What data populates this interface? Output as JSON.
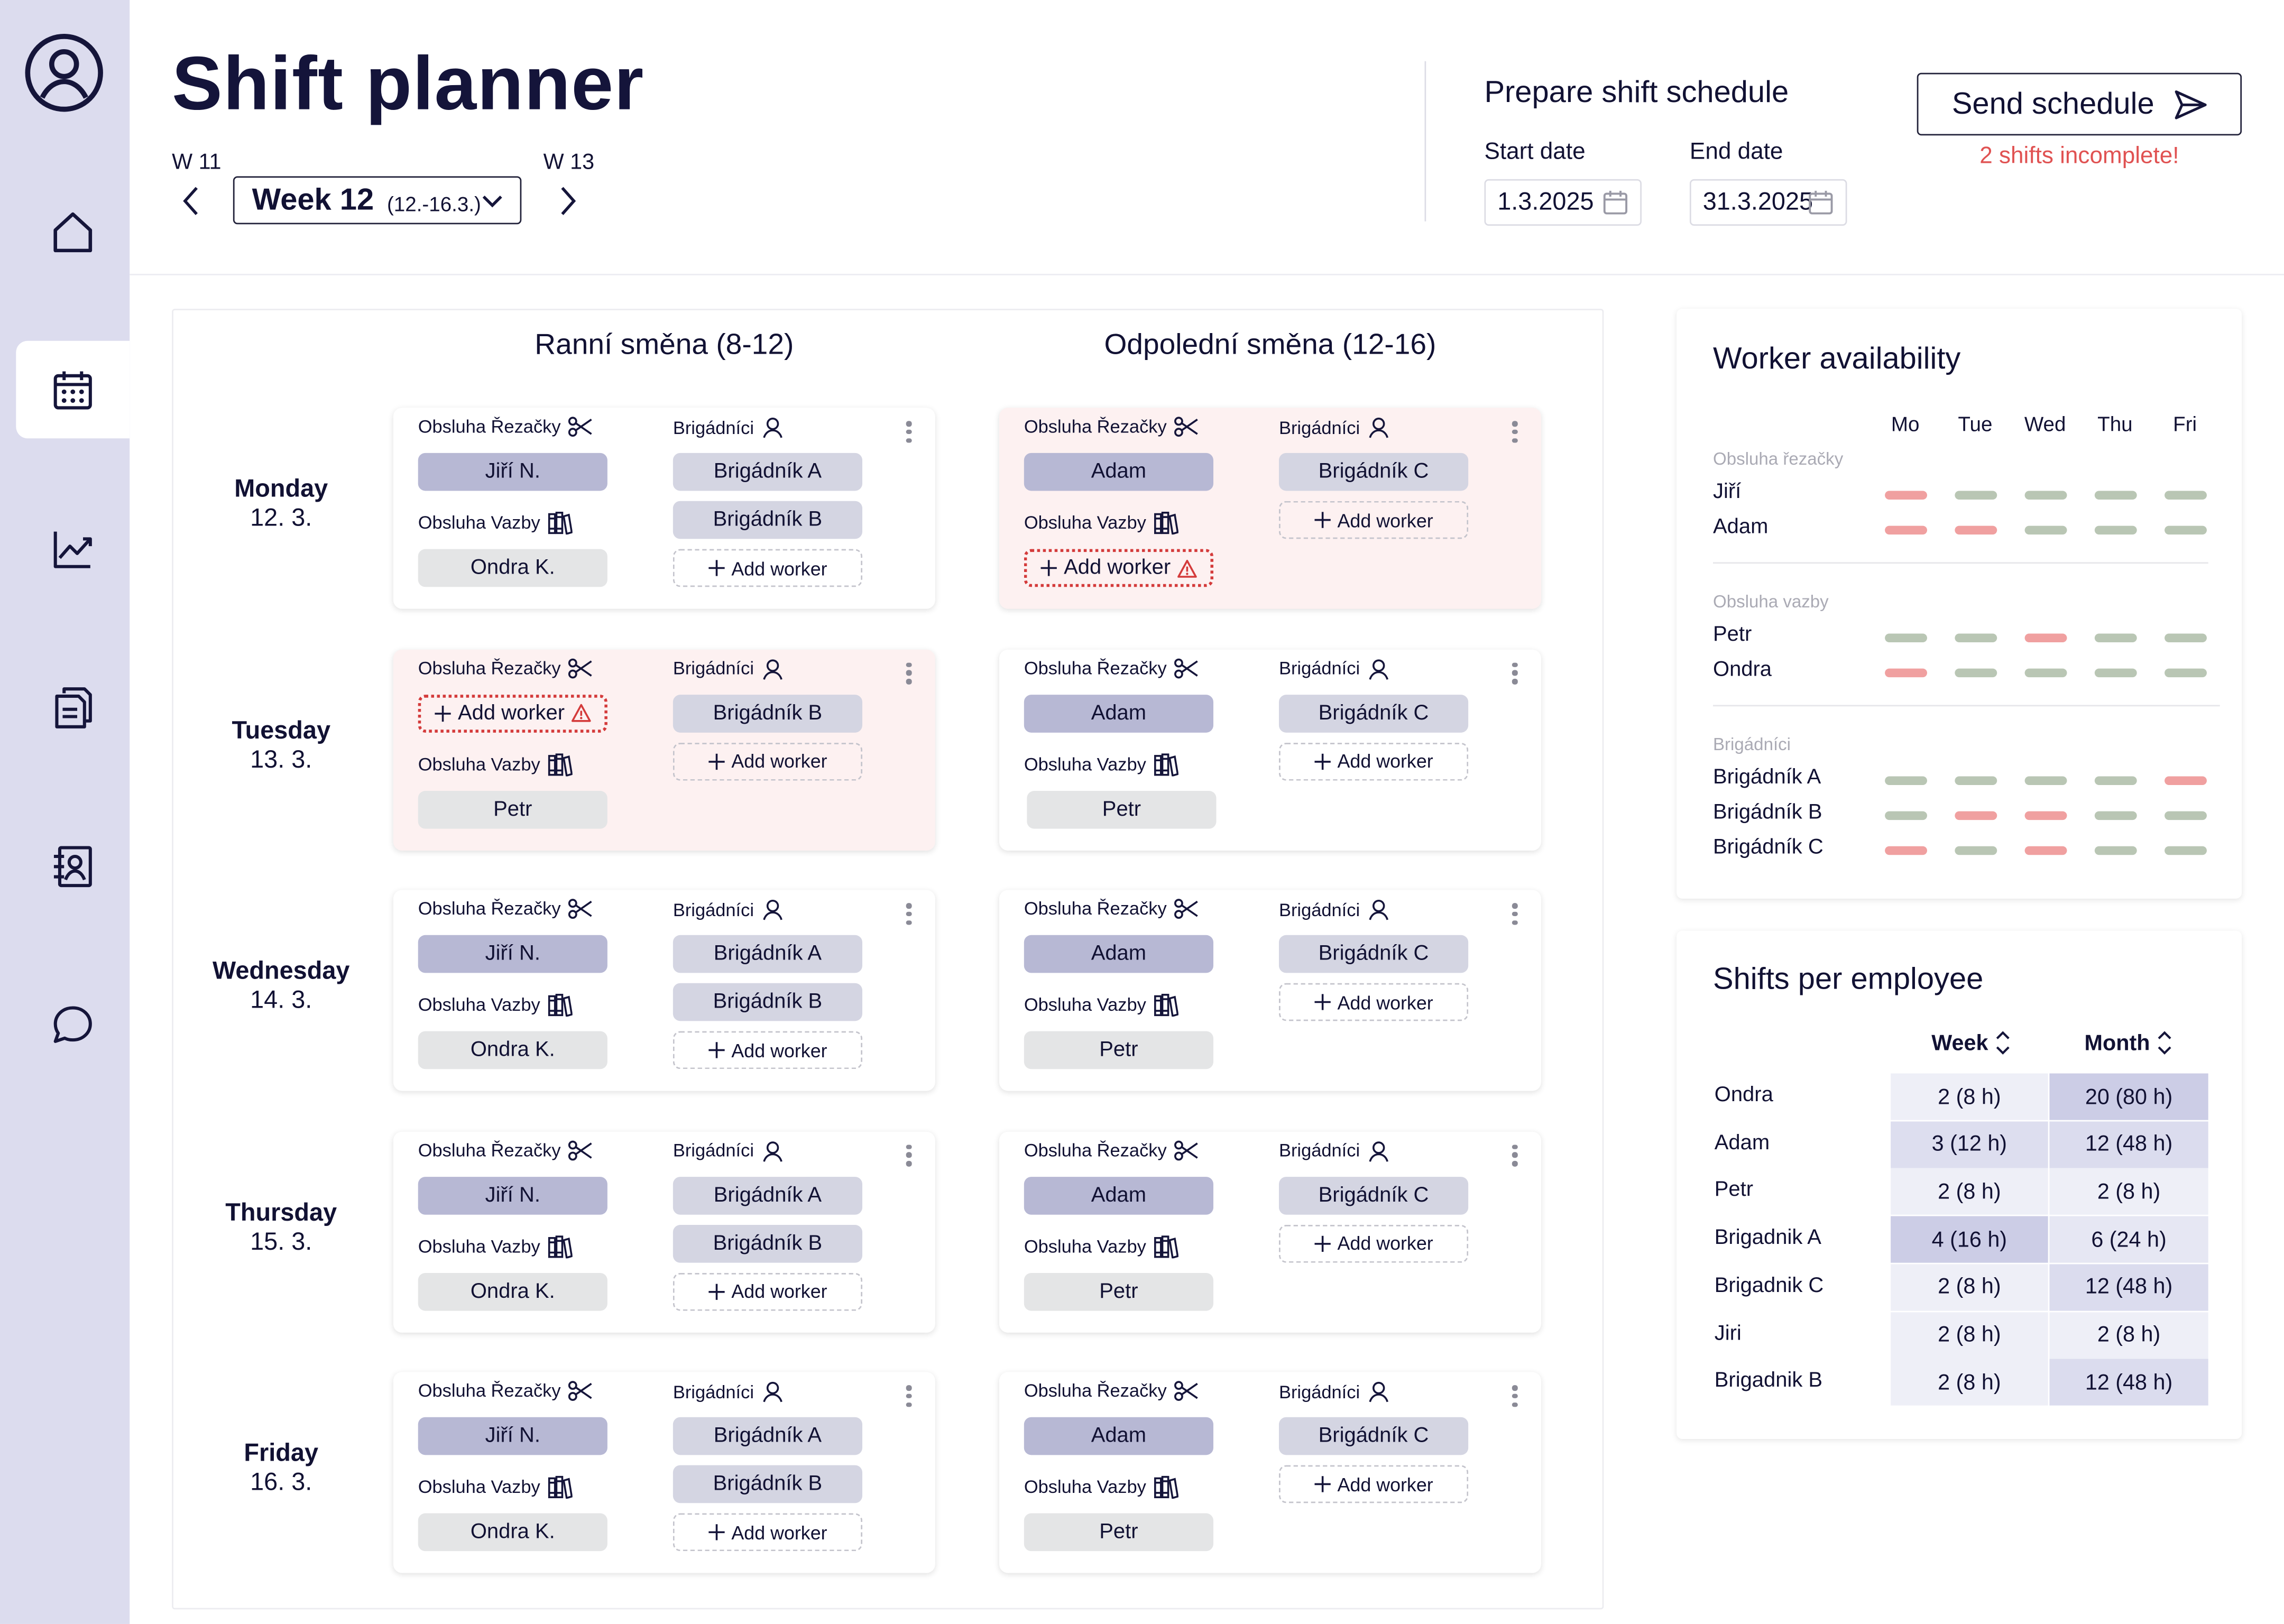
{
  "header": {
    "title": "Shift planner",
    "prev_week_label": "W 11",
    "next_week_label": "W 13",
    "current_week": "Week 12",
    "current_week_range": "(12.-16.3.)"
  },
  "prepare": {
    "title": "Prepare shift schedule",
    "start_label": "Start date",
    "end_label": "End date",
    "start_date": "1.3.2025",
    "end_date": "31.3.2025",
    "send_label": "Send schedule",
    "warning": "2 shifts incomplete!"
  },
  "nav": [
    "user-icon",
    "home-icon",
    "calendar-icon",
    "chart-icon",
    "documents-icon",
    "contacts-icon",
    "chat-icon"
  ],
  "shifts": [
    "Ranní směna (8-12)",
    "Odpolední směna (12-16)"
  ],
  "roles": {
    "cutter": "Obsluha Řezačky",
    "binding": "Obsluha Vazby",
    "temps": "Brigádníci",
    "add": "Add worker"
  },
  "days": [
    {
      "name": "Monday",
      "date": "12. 3.",
      "morning": {
        "cutter": "Jiří N.",
        "binding": "Ondra K.",
        "temps": [
          "Brigádník A",
          "Brigádník B"
        ]
      },
      "afternoon": {
        "cutter": "Adam",
        "binding": "",
        "temps": [
          "Brigádník C"
        ]
      }
    },
    {
      "name": "Tuesday",
      "date": "13. 3.",
      "morning": {
        "cutter": "",
        "binding": "Petr",
        "temps": [
          "Brigádník B"
        ]
      },
      "afternoon": {
        "cutter": "Adam",
        "binding": "Petr",
        "temps": [
          "Brigádník C"
        ]
      }
    },
    {
      "name": "Wednesday",
      "date": "14. 3.",
      "morning": {
        "cutter": "Jiří N.",
        "binding": "Ondra K.",
        "temps": [
          "Brigádník A",
          "Brigádník B"
        ]
      },
      "afternoon": {
        "cutter": "Adam",
        "binding": "Petr",
        "temps": [
          "Brigádník C"
        ]
      }
    },
    {
      "name": "Thursday",
      "date": "15. 3.",
      "morning": {
        "cutter": "Jiří N.",
        "binding": "Ondra K.",
        "temps": [
          "Brigádník A",
          "Brigádník B"
        ]
      },
      "afternoon": {
        "cutter": "Adam",
        "binding": "Petr",
        "temps": [
          "Brigádník C"
        ]
      }
    },
    {
      "name": "Friday",
      "date": "16. 3.",
      "morning": {
        "cutter": "Jiří N.",
        "binding": "Ondra K.",
        "temps": [
          "Brigádník A",
          "Brigádník B"
        ]
      },
      "afternoon": {
        "cutter": "Adam",
        "binding": "Petr",
        "temps": [
          "Brigádník C"
        ]
      }
    }
  ],
  "availability": {
    "title": "Worker availability",
    "days": [
      "Mo",
      "Tue",
      "Wed",
      "Thu",
      "Fri"
    ],
    "groups": [
      {
        "label": "Obsluha řezačky",
        "workers": [
          {
            "name": "Jiří",
            "avail": [
              false,
              true,
              true,
              true,
              true
            ]
          },
          {
            "name": "Adam",
            "avail": [
              false,
              false,
              true,
              true,
              true
            ]
          }
        ]
      },
      {
        "label": "Obsluha vazby",
        "workers": [
          {
            "name": "Petr",
            "avail": [
              true,
              true,
              false,
              true,
              true
            ]
          },
          {
            "name": "Ondra",
            "avail": [
              false,
              true,
              true,
              true,
              true
            ]
          }
        ]
      },
      {
        "label": "Brigádníci",
        "workers": [
          {
            "name": "Brigádník A",
            "avail": [
              true,
              true,
              true,
              true,
              false
            ]
          },
          {
            "name": "Brigádník B",
            "avail": [
              true,
              false,
              false,
              true,
              true
            ]
          },
          {
            "name": "Brigádník C",
            "avail": [
              false,
              true,
              false,
              true,
              true
            ]
          }
        ]
      }
    ],
    "colors": {
      "available": "#b9c6b4",
      "unavailable": "#f0a0a0"
    }
  },
  "shifts_per_employee": {
    "title": "Shifts per employee",
    "columns": [
      "Week",
      "Month"
    ],
    "rows": [
      {
        "name": "Ondra",
        "week": "2 (8 h)",
        "month": "20 (80 h)"
      },
      {
        "name": "Adam",
        "week": "3 (12 h)",
        "month": "12 (48 h)"
      },
      {
        "name": "Petr",
        "week": "2 (8 h)",
        "month": "2 (8 h)"
      },
      {
        "name": "Brigadnik A",
        "week": "4 (16 h)",
        "month": "6 (24 h)"
      },
      {
        "name": "Brigadnik C",
        "week": "2 (8 h)",
        "month": "12 (48 h)"
      },
      {
        "name": "Jiri",
        "week": "2 (8 h)",
        "month": "2 (8 h)"
      },
      {
        "name": "Brigadnik B",
        "week": "2 (8 h)",
        "month": "12 (48 h)"
      }
    ]
  }
}
